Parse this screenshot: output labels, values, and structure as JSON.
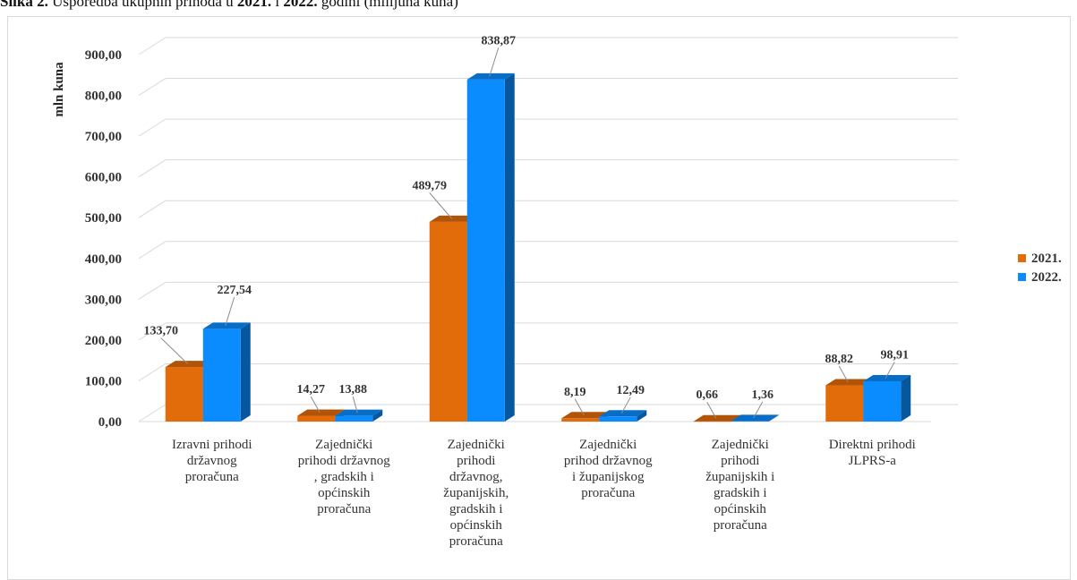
{
  "caption": {
    "prefix": "Slika 2.",
    "text_a": " Usporedba ukupnih prihoda u ",
    "year_a": "2021.",
    "text_b": " i ",
    "year_b": "2022.",
    "text_c": " godini (milijuna kuna)"
  },
  "chart_data": {
    "type": "bar",
    "title": "",
    "ylabel": "mln kuna",
    "xlabel": "",
    "ylim": [
      0,
      900
    ],
    "yticks": [
      "0,00",
      "100,00",
      "200,00",
      "300,00",
      "400,00",
      "500,00",
      "600,00",
      "700,00",
      "800,00",
      "900,00"
    ],
    "categories": [
      "Izravni prihodi\ndržavnog\nproračuna",
      "Zajednički\nprihodi državnog\n, gradskih i\nopćinskih\nproračuna",
      "Zajednički\nprihodi\ndržavnog,\nžupanijskih,\ngradskih i\nopćinskih\nproračuna",
      "Zajednički\nprihod državnog\ni županijskog\nproračuna",
      "Zajednički\nprihodi\nžupanijskih i\ngradskih i\nopćinskih\nproračuna",
      "Direktni prihodi\nJLPRS-a"
    ],
    "series": [
      {
        "name": "2021.",
        "color": "#E36C0A",
        "values": [
          133.7,
          14.27,
          489.79,
          8.19,
          0.66,
          88.82
        ],
        "labels": [
          "133,70",
          "14,27",
          "489,79",
          "8,19",
          "0,66",
          "88,82"
        ]
      },
      {
        "name": "2022.",
        "color": "#0A8CFF",
        "values": [
          227.54,
          13.88,
          838.87,
          12.49,
          1.36,
          98.91
        ],
        "labels": [
          "227,54",
          "13,88",
          "838,87",
          "12,49",
          "1,36",
          "98,91"
        ]
      }
    ],
    "grid": true,
    "legend": "right",
    "style": "3d"
  }
}
